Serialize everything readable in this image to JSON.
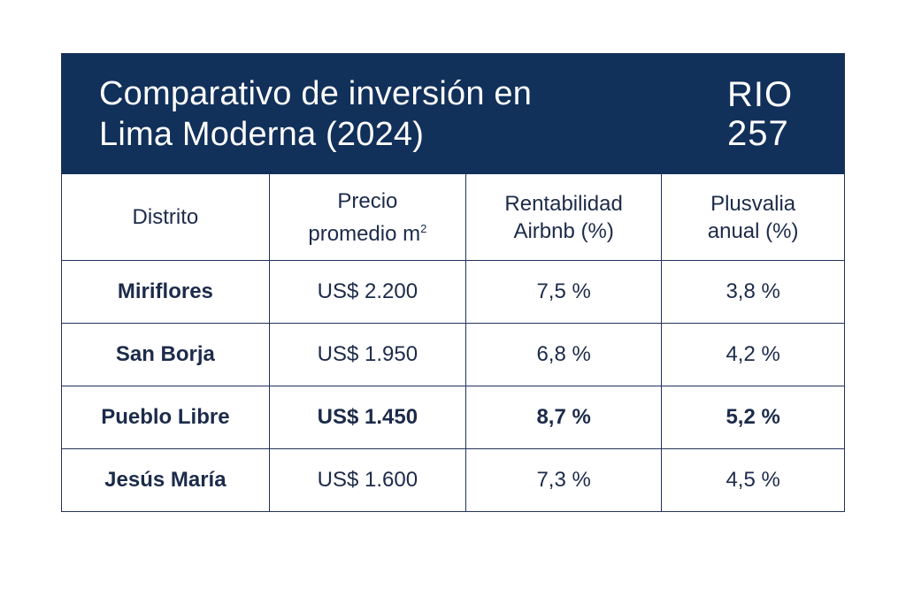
{
  "header": {
    "title_line1": "Comparativo de inversión en",
    "title_line2": "Lima Moderna (2024)",
    "code_line1": "RIO",
    "code_line2": "257"
  },
  "colors": {
    "header_bg": "#11305a",
    "header_text": "#ffffff",
    "table_text": "#1c2b4a",
    "border": "#22325a"
  },
  "table": {
    "columns": [
      {
        "line1": "Distrito",
        "line2": ""
      },
      {
        "line1": "Precio",
        "line2": "promedio m",
        "sup": "2"
      },
      {
        "line1": "Rentabilidad",
        "line2": "Airbnb (%)"
      },
      {
        "line1": "Plusvalia",
        "line2": "anual (%)"
      }
    ],
    "rows": [
      {
        "district": "Miriflores",
        "price": "US$ 2.200",
        "airbnb": "7,5 %",
        "plusvalia": "3,8 %",
        "highlight": false
      },
      {
        "district": "San Borja",
        "price": "US$ 1.950",
        "airbnb": "6,8 %",
        "plusvalia": "4,2 %",
        "highlight": false
      },
      {
        "district": "Pueblo Libre",
        "price": "US$ 1.450",
        "airbnb": "8,7 %",
        "plusvalia": "5,2 %",
        "highlight": true
      },
      {
        "district": "Jesús María",
        "price": "US$ 1.600",
        "airbnb": "7,3 %",
        "plusvalia": "4,5 %",
        "highlight": false
      }
    ]
  }
}
